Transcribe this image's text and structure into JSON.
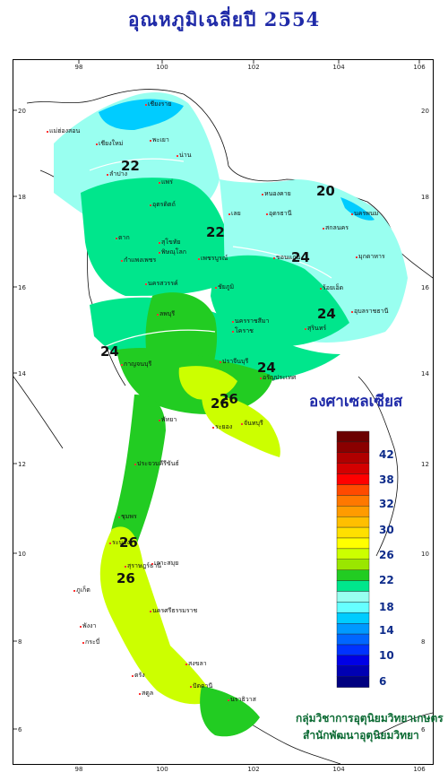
{
  "title": "อุณหภูมิเฉลี่ยปี 2554",
  "unit_label": "องศาเซลเซียส",
  "credits": [
    "กลุ่มวิชาการอุตุนิยมวิทยาเกษตร",
    "สำนักพัฒนาอุตุนิยมวิทยา"
  ],
  "axes": {
    "lon_ticks": [
      "98",
      "100",
      "102",
      "104",
      "106"
    ],
    "lat_ticks": [
      "20",
      "18",
      "16",
      "14",
      "12",
      "10",
      "8",
      "6"
    ]
  },
  "legend": {
    "colors": [
      "#6b0000",
      "#8a0000",
      "#b00000",
      "#d40000",
      "#ff0000",
      "#ff4a00",
      "#ff7800",
      "#ff9b00",
      "#ffbf00",
      "#ffe000",
      "#ffff00",
      "#ccff00",
      "#9ae600",
      "#22cc22",
      "#00e68c",
      "#99fff0",
      "#66ffff",
      "#00ccff",
      "#0099ff",
      "#0066ff",
      "#0033ff",
      "#0000e6",
      "#0000b3",
      "#000080"
    ],
    "labels": [
      "42",
      "38",
      "32",
      "30",
      "26",
      "22",
      "18",
      "14",
      "10",
      "6"
    ]
  },
  "isotherm_labels": [
    "20",
    "22",
    "22",
    "24",
    "24",
    "24",
    "24",
    "26",
    "26",
    "26",
    "26"
  ],
  "place_names": [
    "เชียงราย",
    "แม่ฮ่องสอน",
    "เชียงใหม่",
    "พะเยา",
    "น่าน",
    "ลำปาง",
    "แพร่",
    "อุตรดิตถ์",
    "หนองคาย",
    "นครพนม",
    "เลย",
    "อุดรธานี",
    "สกลนคร",
    "ตาก",
    "สุโขทัย",
    "พิษณุโลก",
    "กำแพงเพชร",
    "เพชรบูรณ์",
    "ขอนแก่น",
    "มุกดาหาร",
    "นครสวรรค์",
    "ชัยภูมิ",
    "ร้อยเอ็ด",
    "อุบลราชธานี",
    "ลพบุรี",
    "นครราชสีมา",
    "โคราช",
    "สุรินทร์",
    "กาญจนบุรี",
    "ปราจีนบุรี",
    "อรัญประเทศ",
    "พัทยา",
    "ระยอง",
    "จันทบุรี",
    "ประจวบคีรีขันธ์",
    "ชุมพร",
    "ระนอง",
    "สุราษฎร์ธานี",
    "เกาะสมุย",
    "ภูเก็ต",
    "นครศรีธรรมราช",
    "พังงา",
    "กระบี่",
    "ตรัง",
    "สงขลา",
    "ปัตตานี",
    "สตูล",
    "นราธิวาส"
  ]
}
